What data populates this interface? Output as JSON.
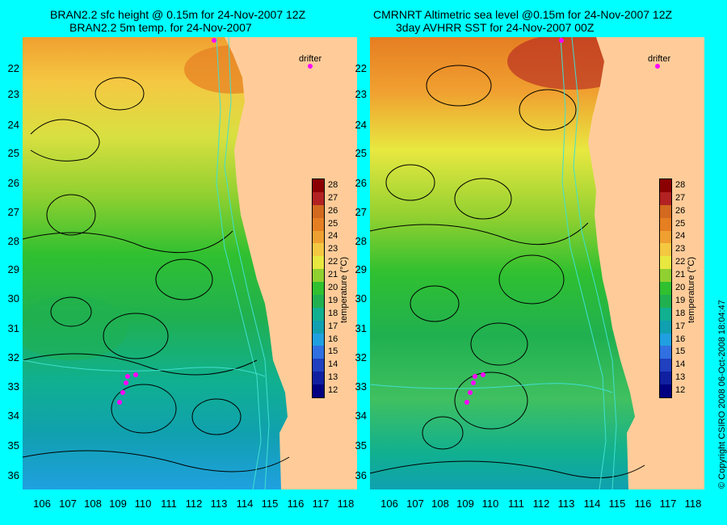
{
  "panels": [
    {
      "title_line1": "BRAN2.2 sfc height @ 0.15m for 24-Nov-2007 12Z",
      "title_line2": "BRAN2.2 5m temp. for 24-Nov-2007"
    },
    {
      "title_line1": "CMRNRT Altimetric sea level  @0.15m  for 24-Nov-2007 12Z",
      "title_line2": "3day AVHRR SST for 24-Nov-2007 00Z"
    }
  ],
  "lat_labels": [
    "22",
    "23",
    "24",
    "25",
    "26",
    "27",
    "28",
    "29",
    "30",
    "31",
    "32",
    "33",
    "34",
    "35",
    "36"
  ],
  "lon_labels": [
    "106",
    "107",
    "108",
    "109",
    "110",
    "111",
    "112",
    "113",
    "114",
    "115",
    "116",
    "117",
    "118"
  ],
  "colorbar": {
    "title": "temperature (°C)",
    "ticks": [
      "28",
      "27",
      "26",
      "25",
      "24",
      "23",
      "22",
      "21",
      "20",
      "19",
      "18",
      "17",
      "16",
      "15",
      "14",
      "13",
      "12"
    ],
    "colors": [
      "#8b0000",
      "#b22222",
      "#d2691e",
      "#e67e22",
      "#f0a030",
      "#f5c842",
      "#e8e840",
      "#90d030",
      "#30c030",
      "#20b050",
      "#10b090",
      "#10a0b0",
      "#20a0e0",
      "#3070e0",
      "#2040c0",
      "#1020a0",
      "#000080"
    ]
  },
  "drifter_label": "drifter",
  "copyright": "© Copyright CSIRO 2008    06-Oct-2008 18:04:47",
  "colors": {
    "background": "#00ffff",
    "land": "#ffcc99",
    "contour": "#000000",
    "isobath": "#40e0d0",
    "drifter": "#ff00ff"
  }
}
